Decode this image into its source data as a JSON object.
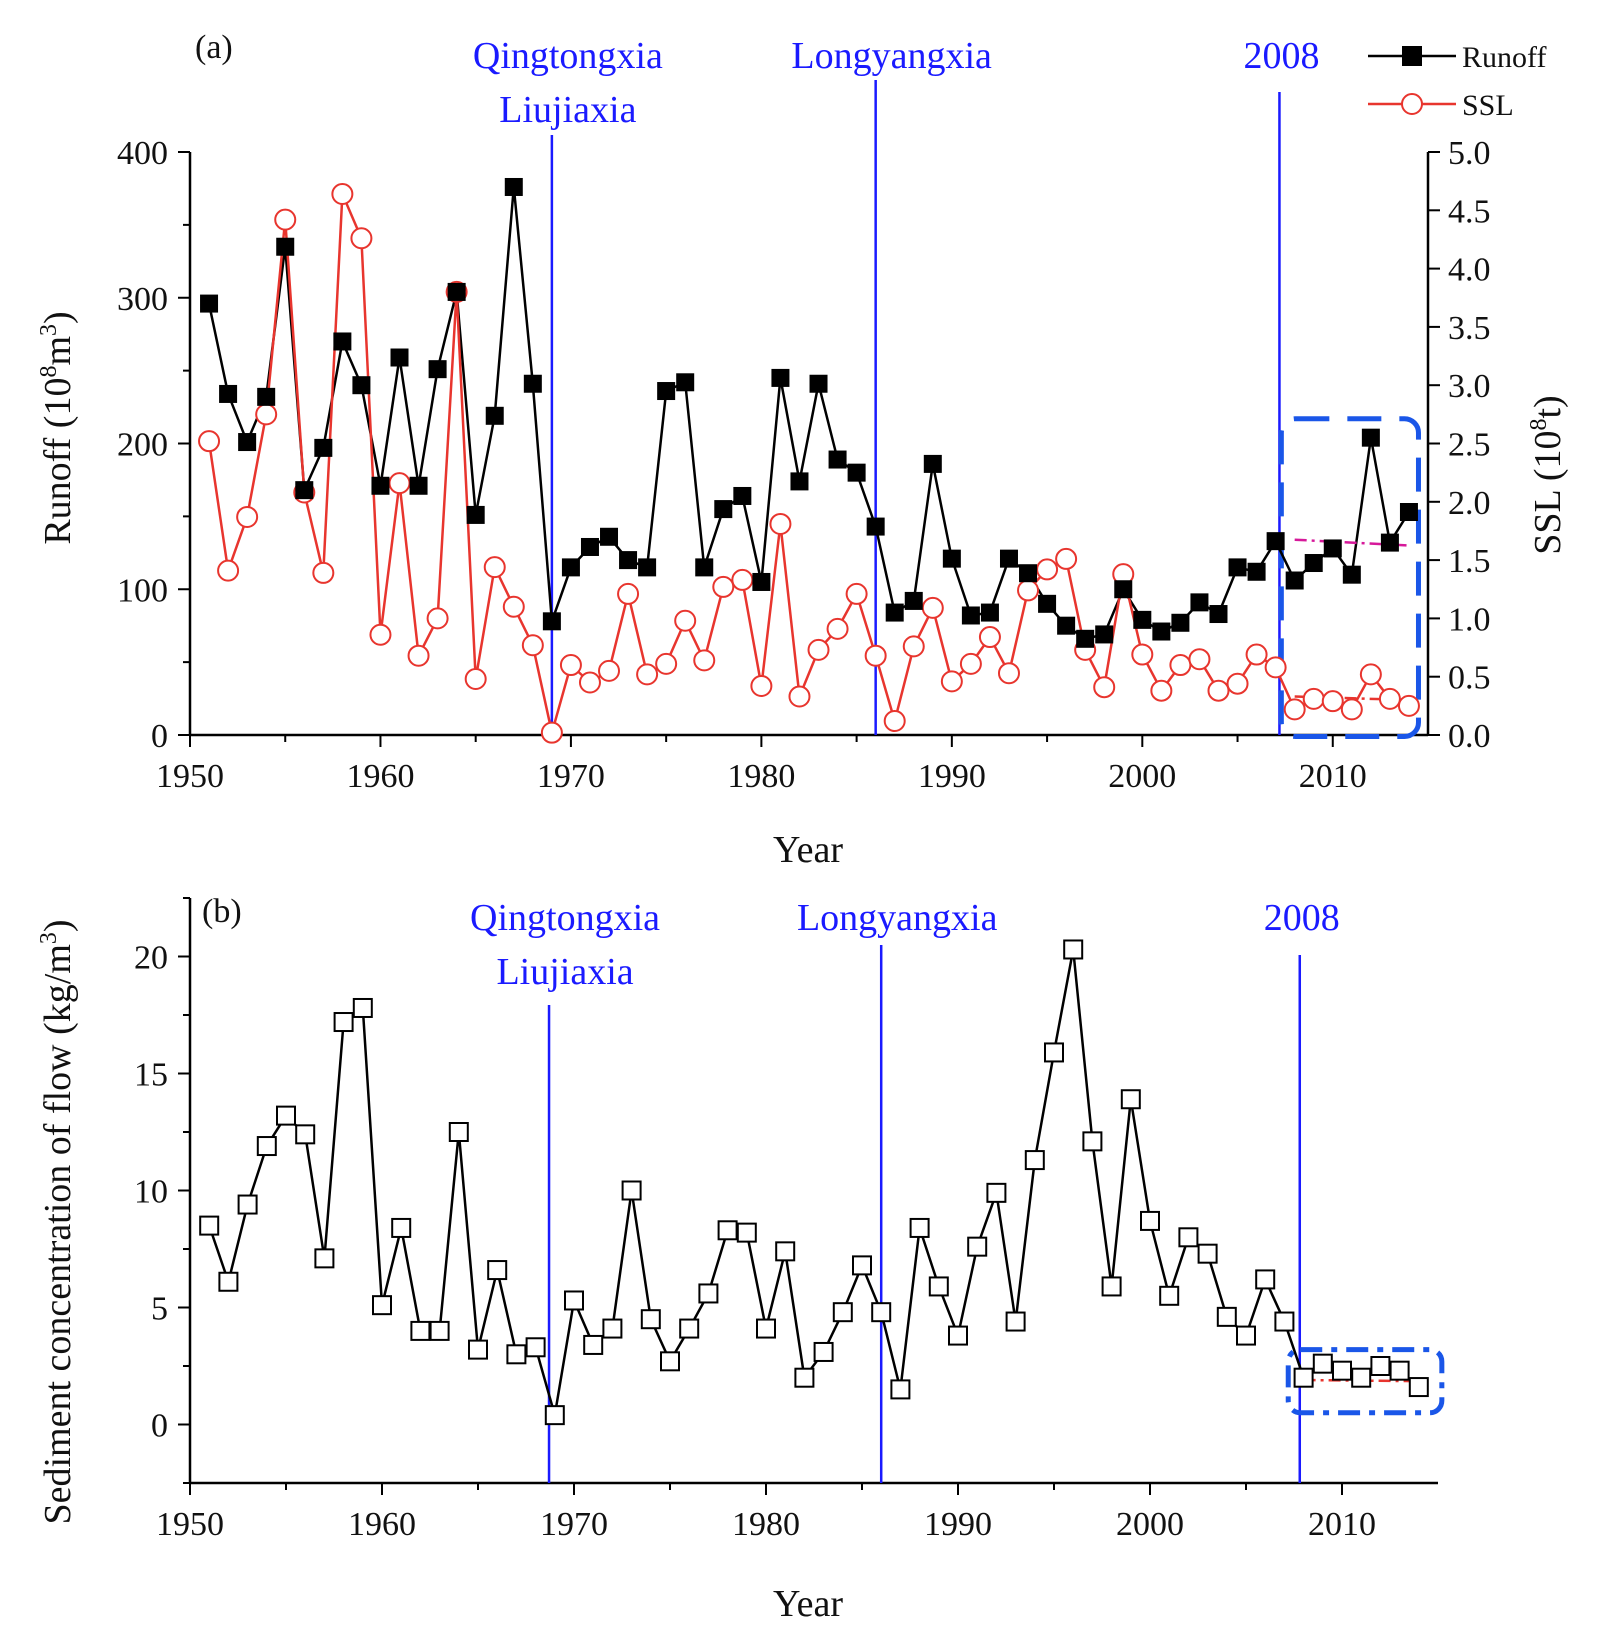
{
  "chart_data": [
    {
      "type": "line",
      "panel_label": "(a)",
      "xlabel": "Year",
      "ylabel": "Runoff (10^8m^3)",
      "ylabel_parts": [
        "Runoff (10",
        "8",
        "m",
        "3",
        ")"
      ],
      "y2label": "SSL (10^8t)",
      "y2label_parts": [
        "SSL (10",
        "8",
        "t)"
      ],
      "xlim": [
        1950,
        2015
      ],
      "ylim": [
        0,
        400
      ],
      "y2lim": [
        0,
        5
      ],
      "xticks": [
        "1950",
        "1960",
        "1970",
        "1980",
        "1990",
        "2000",
        "2010"
      ],
      "yticks": [
        "0",
        "100",
        "200",
        "300",
        "400"
      ],
      "y2ticks": [
        "0.0",
        "0.5",
        "1.0",
        "1.5",
        "2.0",
        "2.5",
        "3.0",
        "3.5",
        "4.0",
        "4.5",
        "5.0"
      ],
      "x": [
        1951,
        1952,
        1953,
        1954,
        1955,
        1956,
        1957,
        1958,
        1959,
        1960,
        1961,
        1962,
        1963,
        1964,
        1965,
        1966,
        1967,
        1968,
        1969,
        1970,
        1971,
        1972,
        1973,
        1974,
        1975,
        1976,
        1977,
        1978,
        1979,
        1980,
        1981,
        1982,
        1983,
        1984,
        1985,
        1986,
        1987,
        1988,
        1989,
        1990,
        1991,
        1992,
        1993,
        1994,
        1995,
        1996,
        1997,
        1998,
        1999,
        2000,
        2001,
        2002,
        2003,
        2004,
        2005,
        2006,
        2007,
        2008,
        2009,
        2010,
        2011,
        2012,
        2013,
        2014
      ],
      "series": [
        {
          "name": "Runoff",
          "axis": "left",
          "color": "#000000",
          "marker": "filled-square",
          "values": [
            296,
            234,
            201,
            232,
            335,
            168,
            197,
            270,
            240,
            171,
            259,
            171,
            251,
            304,
            151,
            219,
            376,
            241,
            78,
            115,
            129,
            136,
            120,
            115,
            236,
            242,
            115,
            155,
            164,
            105,
            245,
            174,
            241,
            189,
            180,
            143,
            84,
            92,
            186,
            121,
            82,
            84,
            121,
            111,
            90,
            75,
            66,
            69,
            100,
            79,
            71,
            77,
            91,
            83,
            115,
            112,
            133,
            106,
            118,
            128,
            110,
            204,
            132,
            153
          ]
        },
        {
          "name": "SSL",
          "axis": "right",
          "color": "#e8352e",
          "marker": "open-circle",
          "values": [
            2.52,
            1.41,
            1.87,
            2.75,
            4.42,
            2.08,
            1.39,
            4.64,
            4.26,
            0.86,
            2.16,
            0.68,
            1.0,
            3.8,
            0.48,
            1.44,
            1.1,
            0.77,
            0.02,
            0.6,
            0.45,
            0.55,
            1.21,
            0.52,
            0.61,
            0.98,
            0.64,
            1.27,
            1.33,
            0.42,
            1.81,
            0.33,
            0.73,
            0.91,
            1.21,
            0.68,
            0.12,
            0.76,
            1.09,
            0.46,
            0.61,
            0.84,
            0.53,
            1.24,
            1.42,
            1.51,
            0.73,
            0.41,
            1.38,
            0.69,
            0.38,
            0.6,
            0.65,
            0.38,
            0.44,
            0.69,
            0.58,
            0.22,
            0.31,
            0.29,
            0.22,
            0.52,
            0.31,
            0.25
          ]
        }
      ],
      "events": [
        {
          "x": 1969,
          "label_lines": [
            "Qingtongxia",
            "Liujiaxia"
          ]
        },
        {
          "x": 1986,
          "label_lines": [
            "Longyangxia"
          ]
        },
        {
          "x": 2007.2,
          "label_lines": [
            "2008"
          ]
        }
      ],
      "trend_lines": [
        {
          "axis": "left",
          "x": [
            2008,
            2014
          ],
          "y": [
            134,
            130
          ],
          "color": "#d6199a"
        },
        {
          "axis": "right",
          "x": [
            2008,
            2014
          ],
          "y": [
            0.33,
            0.3
          ],
          "color": "#e8352e"
        }
      ],
      "highlight_box": {
        "x": [
          2007.3,
          2014.5
        ],
        "y": [
          -1,
          217
        ],
        "color": "#1a56e8"
      },
      "legend": {
        "position": "top-right",
        "entries": [
          "Runoff",
          "SSL"
        ]
      }
    },
    {
      "type": "line",
      "panel_label": "(b)",
      "xlabel": "Year",
      "ylabel": "Sediment concentration of flow (kg/m^3)",
      "ylabel_parts": [
        "Sediment concentration of flow (kg/m",
        "3",
        ")"
      ],
      "xlim": [
        1950,
        2015
      ],
      "ylim": [
        -2.5,
        22.5
      ],
      "xticks": [
        "1950",
        "1960",
        "1970",
        "1980",
        "1990",
        "2000",
        "2010"
      ],
      "yticks": [
        "0",
        "5",
        "10",
        "15",
        "20"
      ],
      "x": [
        1951,
        1952,
        1953,
        1954,
        1955,
        1956,
        1957,
        1958,
        1959,
        1960,
        1961,
        1962,
        1963,
        1964,
        1965,
        1966,
        1967,
        1968,
        1969,
        1970,
        1971,
        1972,
        1973,
        1974,
        1975,
        1976,
        1977,
        1978,
        1979,
        1980,
        1981,
        1982,
        1983,
        1984,
        1985,
        1986,
        1987,
        1988,
        1989,
        1990,
        1991,
        1992,
        1993,
        1994,
        1995,
        1996,
        1997,
        1998,
        1999,
        2000,
        2001,
        2002,
        2003,
        2004,
        2005,
        2006,
        2007,
        2008,
        2009,
        2010,
        2011,
        2012,
        2013,
        2014
      ],
      "series": [
        {
          "name": "Sediment concentration",
          "color": "#000000",
          "marker": "open-square",
          "values": [
            8.5,
            6.1,
            9.4,
            11.9,
            13.2,
            12.4,
            7.1,
            17.2,
            17.8,
            5.1,
            8.4,
            4.0,
            4.0,
            12.5,
            3.2,
            6.6,
            3.0,
            3.3,
            0.4,
            5.3,
            3.4,
            4.1,
            10.0,
            4.5,
            2.7,
            4.1,
            5.6,
            8.3,
            8.2,
            4.1,
            7.4,
            2.0,
            3.1,
            4.8,
            6.8,
            4.8,
            1.5,
            8.4,
            5.9,
            3.8,
            7.6,
            9.9,
            4.4,
            11.3,
            15.9,
            20.3,
            12.1,
            5.9,
            13.9,
            8.7,
            5.5,
            8.0,
            7.3,
            4.6,
            3.8,
            6.2,
            4.4,
            2.0,
            2.6,
            2.3,
            2.0,
            2.5,
            2.3,
            1.6
          ]
        }
      ],
      "events": [
        {
          "x": 1968.7,
          "label_lines": [
            "Qingtongxia",
            "Liujiaxia"
          ]
        },
        {
          "x": 1986,
          "label_lines": [
            "Longyangxia"
          ]
        },
        {
          "x": 2007.8,
          "label_lines": [
            "2008"
          ]
        }
      ],
      "trend_lines": [
        {
          "x": [
            2008,
            2014
          ],
          "y": [
            1.9,
            1.85
          ],
          "color": "#e8352e"
        }
      ],
      "highlight_box": {
        "x": [
          2007.2,
          2015.2
        ],
        "y": [
          0.5,
          3.2
        ],
        "color": "#1a56e8"
      }
    }
  ]
}
